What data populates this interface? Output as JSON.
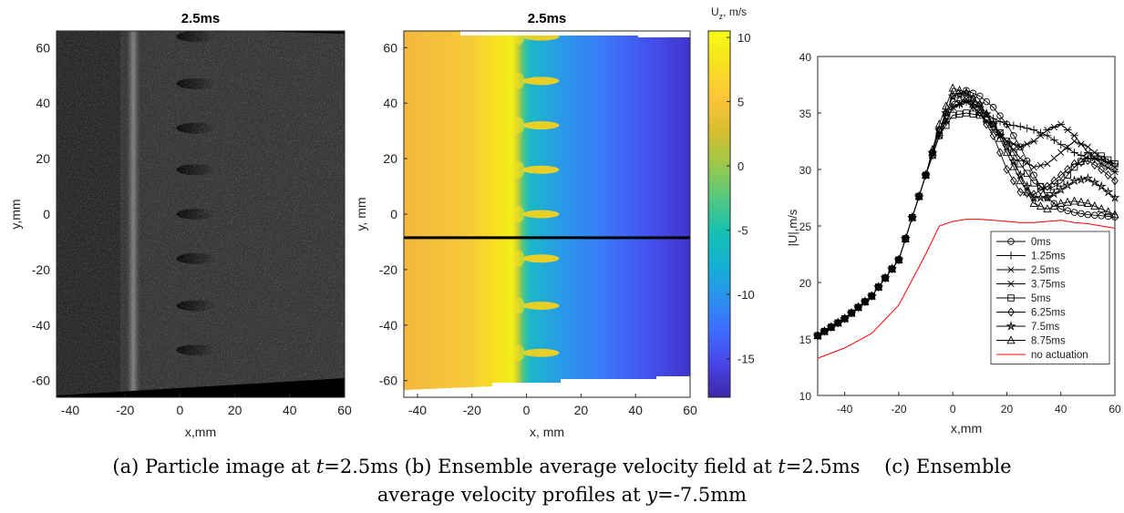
{
  "figure": {
    "caption_a_prefix": "(a) Particle image at ",
    "caption_a_var": "t",
    "caption_a_suffix": "=2.5ms",
    "caption_b_prefix": "(b) Ensemble average velocity field at ",
    "caption_b_var": "t",
    "caption_b_suffix": "=2.5ms",
    "caption_c_line1": "(c) Ensemble",
    "caption_c_line2_prefix": "average velocity profiles at ",
    "caption_c_var": "y",
    "caption_c_suffix": "=-7.5mm"
  },
  "chart_data": [
    {
      "type": "heatmap",
      "panel": "a",
      "title": "2.5ms",
      "xlabel": "x,mm",
      "ylabel": "y,mm",
      "xlim": [
        -45,
        60
      ],
      "ylim": [
        -66,
        66
      ],
      "xticks": [
        -40,
        -20,
        0,
        20,
        40,
        60
      ],
      "yticks": [
        60,
        40,
        20,
        0,
        -20,
        -40,
        -60
      ],
      "colormap": "gray",
      "description_values": {
        "bright_vertical_band_x": -17,
        "streak_x_start": 0,
        "streak_x_end": 12,
        "streak_y": [
          64,
          47,
          31,
          16,
          0,
          -16,
          -33,
          -49
        ]
      }
    },
    {
      "type": "heatmap",
      "panel": "b",
      "title": "2.5ms",
      "xlabel": "x, mm",
      "ylabel": "y, mm",
      "xlim": [
        -45,
        60
      ],
      "ylim": [
        -66,
        66
      ],
      "xticks": [
        -40,
        -20,
        0,
        20,
        40,
        60
      ],
      "yticks": [
        60,
        40,
        20,
        0,
        -20,
        -40,
        -60
      ],
      "colorbar": {
        "label_main": "U",
        "label_sub": "z",
        "label_rest": ", m/s",
        "range": [
          -18,
          10.5
        ],
        "ticks": [
          10,
          5,
          0,
          -5,
          -10,
          -15
        ],
        "colormap": "parula",
        "colors": [
          "#3e26a8",
          "#4745e6",
          "#3d6cff",
          "#2c91ed",
          "#13b2d3",
          "#17c0b1",
          "#55c97e",
          "#9cc84a",
          "#d7be2f",
          "#fdc43a",
          "#f5e11e",
          "#f9fb15"
        ]
      },
      "reference_line_y": -8.5,
      "reference_line_color": "#000000",
      "shear_layer_x": 0,
      "left_value_approx": 6,
      "right_value_approx": -17,
      "jet_y": [
        64,
        48,
        32,
        16,
        0,
        -16,
        -33,
        -50
      ]
    },
    {
      "type": "line",
      "panel": "c",
      "xlabel": "x,mm",
      "ylabel": "|U|,m/s",
      "xlim": [
        -50,
        60
      ],
      "ylim": [
        10,
        40
      ],
      "xticks": [
        -40,
        -20,
        0,
        20,
        40,
        60
      ],
      "yticks": [
        10,
        15,
        20,
        25,
        30,
        35,
        40
      ],
      "legend": "bottom-right",
      "x": [
        -50,
        -40,
        -30,
        -20,
        -10,
        -5,
        0,
        5,
        10,
        15,
        20,
        25,
        30,
        35,
        40,
        45,
        50,
        55,
        60
      ],
      "series": [
        {
          "name": "0ms",
          "marker": "circle",
          "color": "#000000",
          "values": [
            15.3,
            16.8,
            18.8,
            22.0,
            29.5,
            33.5,
            36.5,
            37.0,
            36.5,
            35.5,
            34.0,
            32.0,
            29.5,
            27.5,
            26.5,
            26.2,
            26.0,
            25.9,
            25.8
          ]
        },
        {
          "name": "1.25ms",
          "marker": "plus",
          "color": "#000000",
          "values": [
            15.3,
            16.8,
            18.8,
            22.0,
            29.5,
            33.0,
            35.5,
            36.0,
            35.5,
            34.5,
            34.0,
            33.8,
            33.5,
            33.0,
            32.2,
            31.5,
            31.0,
            30.8,
            30.5
          ]
        },
        {
          "name": "2.5ms",
          "marker": "asterisk",
          "color": "#000000",
          "values": [
            15.3,
            16.8,
            18.8,
            22.0,
            29.5,
            33.0,
            35.5,
            36.0,
            35.0,
            33.5,
            32.5,
            32.0,
            32.5,
            33.5,
            34.0,
            33.0,
            31.5,
            30.5,
            29.8
          ]
        },
        {
          "name": "3.75ms",
          "marker": "cross",
          "color": "#000000",
          "values": [
            15.3,
            16.8,
            18.8,
            22.0,
            29.5,
            33.0,
            35.5,
            36.2,
            35.5,
            34.0,
            32.5,
            31.0,
            30.2,
            30.5,
            31.5,
            32.5,
            32.0,
            31.0,
            30.2
          ]
        },
        {
          "name": "5ms",
          "marker": "square",
          "color": "#000000",
          "values": [
            15.3,
            16.8,
            18.8,
            22.0,
            29.5,
            33.0,
            34.8,
            35.0,
            34.8,
            34.0,
            32.5,
            30.5,
            28.8,
            28.2,
            28.8,
            30.2,
            31.2,
            31.2,
            30.5
          ]
        },
        {
          "name": "6.25ms",
          "marker": "diamond",
          "color": "#000000",
          "values": [
            15.3,
            16.8,
            18.8,
            22.0,
            29.5,
            33.5,
            36.0,
            36.2,
            35.0,
            33.0,
            30.0,
            28.0,
            27.8,
            28.5,
            29.5,
            30.5,
            30.8,
            30.0,
            29.0
          ]
        },
        {
          "name": "7.5ms",
          "marker": "star",
          "color": "#000000",
          "values": [
            15.3,
            16.8,
            18.8,
            22.0,
            29.5,
            33.5,
            36.5,
            36.8,
            35.8,
            34.0,
            32.0,
            29.5,
            27.5,
            27.5,
            28.2,
            29.0,
            29.2,
            28.5,
            27.5
          ]
        },
        {
          "name": "8.75ms",
          "marker": "triangle",
          "color": "#000000",
          "values": [
            15.3,
            16.8,
            18.8,
            22.0,
            29.5,
            34.0,
            37.2,
            36.8,
            35.8,
            34.0,
            31.5,
            29.0,
            27.0,
            26.5,
            27.0,
            27.2,
            27.0,
            26.5,
            26.0
          ]
        },
        {
          "name": "no actuation",
          "marker": "none",
          "color": "#ff0000",
          "values": [
            13.3,
            14.2,
            15.5,
            18.0,
            22.5,
            25.0,
            25.4,
            25.6,
            25.6,
            25.5,
            25.4,
            25.3,
            25.3,
            25.4,
            25.5,
            25.3,
            25.2,
            25.0,
            24.8
          ]
        }
      ]
    }
  ]
}
